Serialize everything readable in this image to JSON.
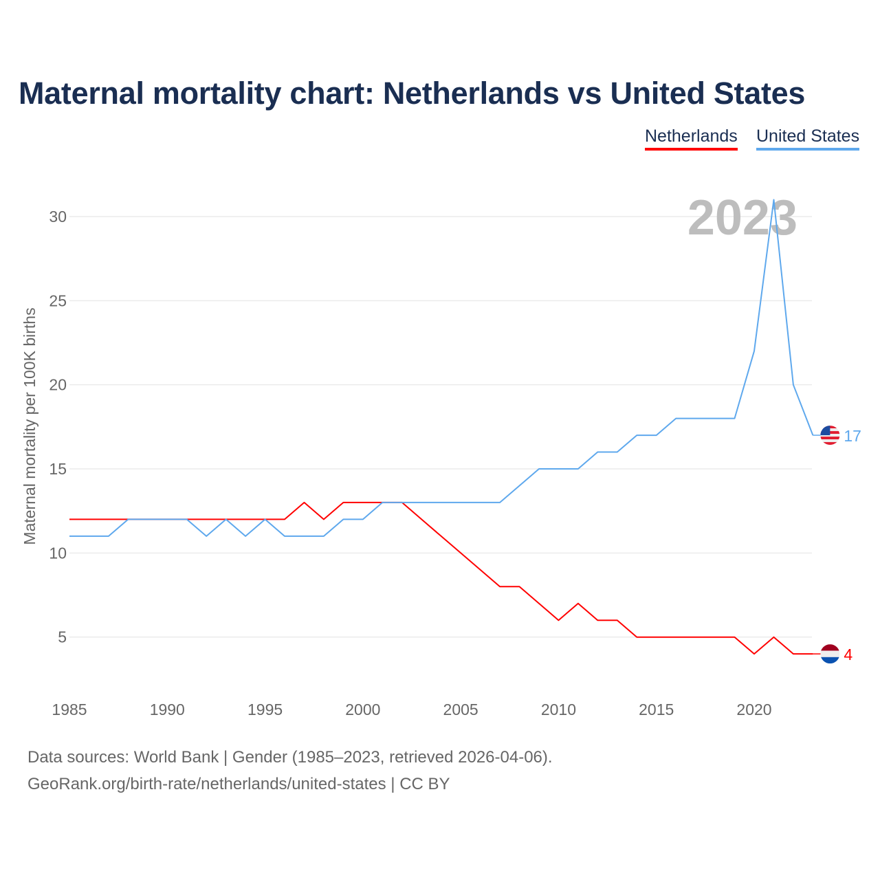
{
  "title": "Maternal mortality chart: Netherlands vs United States",
  "legend": [
    "Netherlands",
    "United States"
  ],
  "source_line1": "Data sources: World Bank | Gender (1985–2023, retrieved 2026-04-06).",
  "source_line2": "GeoRank.org/birth-rate/netherlands/united-states | CC BY",
  "chart_data": {
    "type": "line",
    "title": "Maternal mortality chart: Netherlands vs United States",
    "xlabel": "",
    "ylabel": "Maternal mortality per 100K births",
    "year_watermark": "2023",
    "xlim": [
      1985,
      2023
    ],
    "ylim": [
      0,
      30
    ],
    "x_ticks": [
      1985,
      1990,
      1995,
      2000,
      2005,
      2010,
      2015,
      2020
    ],
    "y_ticks": [
      5,
      10,
      15,
      20,
      25,
      30
    ],
    "grid": true,
    "legend_position": "top-right",
    "x": [
      1985,
      1986,
      1987,
      1988,
      1989,
      1990,
      1991,
      1992,
      1993,
      1994,
      1995,
      1996,
      1997,
      1998,
      1999,
      2000,
      2001,
      2002,
      2003,
      2004,
      2005,
      2006,
      2007,
      2008,
      2009,
      2010,
      2011,
      2012,
      2013,
      2014,
      2015,
      2016,
      2017,
      2018,
      2019,
      2020,
      2021,
      2022,
      2023
    ],
    "series": [
      {
        "name": "Netherlands",
        "color": "#ff0000",
        "end_label": "4",
        "values": [
          12,
          12,
          12,
          12,
          12,
          12,
          12,
          12,
          12,
          12,
          12,
          12,
          13,
          12,
          13,
          13,
          13,
          13,
          12,
          11,
          10,
          9,
          8,
          8,
          7,
          6,
          7,
          6,
          6,
          5,
          5,
          5,
          5,
          5,
          5,
          4,
          5,
          4,
          4
        ]
      },
      {
        "name": "United States",
        "color": "#5ea8ed",
        "end_label": "17",
        "values": [
          11,
          11,
          11,
          12,
          12,
          12,
          12,
          11,
          12,
          11,
          12,
          11,
          11,
          11,
          12,
          12,
          13,
          13,
          13,
          13,
          13,
          13,
          13,
          14,
          15,
          15,
          15,
          16,
          16,
          17,
          17,
          18,
          18,
          18,
          18,
          22,
          31,
          20,
          17
        ]
      }
    ]
  }
}
